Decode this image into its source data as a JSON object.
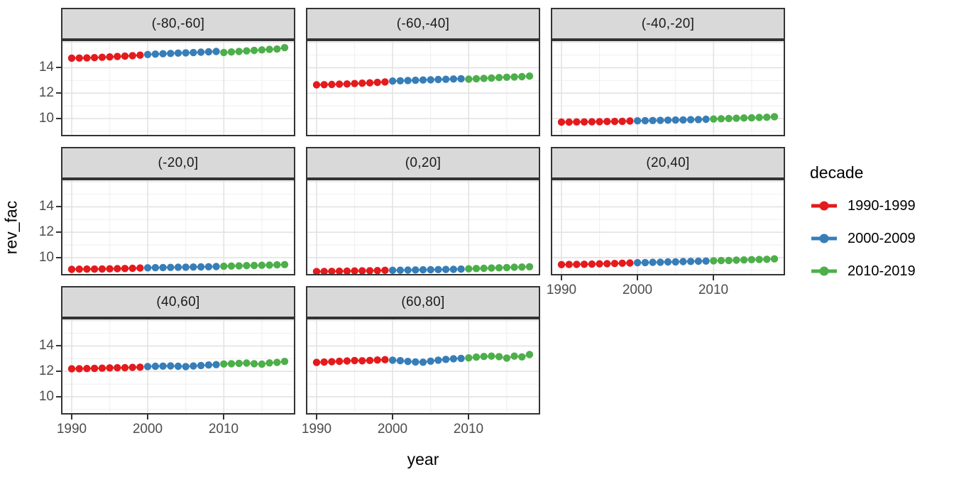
{
  "chart_data": {
    "type": "scatter",
    "title": "",
    "xlabel": "year",
    "ylabel": "rev_fac",
    "x_ticks": [
      1990,
      2000,
      2010
    ],
    "x_minor_ticks": [
      1995,
      2005,
      2015
    ],
    "y_major_gridlines": [
      10,
      12,
      14,
      16
    ],
    "y_minor_gridlines": [
      9,
      11,
      13,
      15
    ],
    "y_tick_labels": [
      10,
      12,
      14
    ],
    "xlim": [
      1988.6,
      2019.4
    ],
    "ylim": [
      8.6,
      16.2
    ],
    "grid": "on",
    "legend_position": "right",
    "years": [
      1990,
      1991,
      1992,
      1993,
      1994,
      1995,
      1996,
      1997,
      1998,
      1999,
      2000,
      2001,
      2002,
      2003,
      2004,
      2005,
      2006,
      2007,
      2008,
      2009,
      2010,
      2011,
      2012,
      2013,
      2014,
      2015,
      2016,
      2017,
      2018
    ],
    "legend": {
      "title": "decade",
      "entries": [
        {
          "label": "1990-1999",
          "color": "#E41A1C",
          "from": 1990,
          "to": 1999
        },
        {
          "label": "2000-2009",
          "color": "#377EB8",
          "from": 2000,
          "to": 2009
        },
        {
          "label": "2010-2019",
          "color": "#4DAF4A",
          "from": 2010,
          "to": 2019
        }
      ]
    },
    "facets": [
      {
        "label": "(-80,-60]",
        "values": [
          14.75,
          14.76,
          14.77,
          14.79,
          14.82,
          14.85,
          14.88,
          14.91,
          14.95,
          14.99,
          15.04,
          15.07,
          15.1,
          15.12,
          15.15,
          15.17,
          15.19,
          15.22,
          15.25,
          15.28,
          15.2,
          15.24,
          15.28,
          15.32,
          15.36,
          15.4,
          15.44,
          15.47,
          15.58
        ]
      },
      {
        "label": "(-60,-40]",
        "values": [
          12.65,
          12.66,
          12.68,
          12.7,
          12.72,
          12.75,
          12.78,
          12.81,
          12.84,
          12.88,
          12.95,
          12.97,
          12.99,
          13.01,
          13.03,
          13.05,
          13.07,
          13.09,
          13.11,
          13.13,
          13.1,
          13.13,
          13.16,
          13.19,
          13.22,
          13.25,
          13.27,
          13.3,
          13.34
        ]
      },
      {
        "label": "(-40,-20]",
        "values": [
          9.72,
          9.72,
          9.73,
          9.73,
          9.74,
          9.75,
          9.76,
          9.77,
          9.78,
          9.8,
          9.82,
          9.83,
          9.84,
          9.85,
          9.87,
          9.88,
          9.89,
          9.91,
          9.92,
          9.94,
          9.96,
          9.98,
          10.0,
          10.02,
          10.04,
          10.06,
          10.08,
          10.1,
          10.14
        ]
      },
      {
        "label": "(-20,0]",
        "values": [
          9.08,
          9.09,
          9.1,
          9.1,
          9.11,
          9.12,
          9.13,
          9.14,
          9.16,
          9.18,
          9.2,
          9.21,
          9.22,
          9.23,
          9.24,
          9.25,
          9.26,
          9.27,
          9.28,
          9.3,
          9.32,
          9.34,
          9.35,
          9.37,
          9.38,
          9.4,
          9.41,
          9.43,
          9.45
        ]
      },
      {
        "label": "(0,20]",
        "values": [
          8.9,
          8.91,
          8.92,
          8.93,
          8.94,
          8.95,
          8.96,
          8.97,
          8.98,
          9.0,
          9.0,
          9.01,
          9.02,
          9.03,
          9.04,
          9.05,
          9.06,
          9.07,
          9.08,
          9.1,
          9.12,
          9.14,
          9.16,
          9.18,
          9.2,
          9.22,
          9.24,
          9.26,
          9.28
        ]
      },
      {
        "label": "(20,40]",
        "values": [
          9.45,
          9.46,
          9.47,
          9.48,
          9.49,
          9.51,
          9.52,
          9.54,
          9.56,
          9.58,
          9.6,
          9.61,
          9.63,
          9.64,
          9.66,
          9.67,
          9.69,
          9.7,
          9.72,
          9.73,
          9.75,
          9.77,
          9.78,
          9.8,
          9.82,
          9.84,
          9.85,
          9.87,
          9.9
        ]
      },
      {
        "label": "(40,60]",
        "values": [
          12.2,
          12.21,
          12.22,
          12.24,
          12.25,
          12.27,
          12.28,
          12.29,
          12.31,
          12.33,
          12.38,
          12.4,
          12.41,
          12.43,
          12.4,
          12.38,
          12.42,
          12.46,
          12.5,
          12.53,
          12.58,
          12.6,
          12.63,
          12.65,
          12.6,
          12.57,
          12.66,
          12.7,
          12.78
        ]
      },
      {
        "label": "(60,80]",
        "values": [
          12.7,
          12.73,
          12.76,
          12.79,
          12.82,
          12.85,
          12.83,
          12.86,
          12.89,
          12.92,
          12.88,
          12.84,
          12.78,
          12.74,
          12.72,
          12.8,
          12.88,
          12.94,
          12.99,
          13.02,
          13.06,
          13.12,
          13.17,
          13.2,
          13.16,
          13.04,
          13.2,
          13.14,
          13.32
        ]
      }
    ],
    "style": {
      "strip_bg": "#d9d9d9",
      "panel_border": "#333333",
      "major_grid": "#e3e3e3",
      "minor_grid": "#f1f1f1",
      "tick_text": "#4d4d4d",
      "point_radius": 5.2
    }
  }
}
